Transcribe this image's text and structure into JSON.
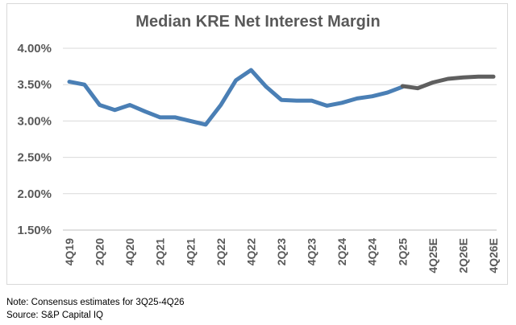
{
  "notes": {
    "note": "Note: Consensus estimates for 3Q25-4Q26",
    "source": "Source: S&P Capital IQ"
  },
  "chart_data": {
    "type": "line",
    "title": "Median KRE Net Interest Margin",
    "xlabel": "",
    "ylabel": "",
    "ylim": [
      1.5,
      4.0
    ],
    "yticks": [
      "1.50%",
      "2.00%",
      "2.50%",
      "3.00%",
      "3.50%",
      "4.00%"
    ],
    "ytick_values": [
      1.5,
      2.0,
      2.5,
      3.0,
      3.5,
      4.0
    ],
    "grid": "horizontal",
    "categories": [
      "4Q19",
      "1Q20",
      "2Q20",
      "3Q20",
      "4Q20",
      "1Q21",
      "2Q21",
      "3Q21",
      "4Q21",
      "1Q22",
      "2Q22",
      "3Q22",
      "4Q22",
      "1Q23",
      "2Q23",
      "3Q23",
      "4Q23",
      "1Q24",
      "2Q24",
      "3Q24",
      "4Q24",
      "1Q25",
      "2Q25",
      "3Q25E",
      "4Q25E",
      "1Q26E",
      "2Q26E",
      "3Q26E",
      "4Q26E"
    ],
    "xtick_labels": [
      "4Q19",
      "2Q20",
      "4Q20",
      "2Q21",
      "4Q21",
      "2Q22",
      "4Q22",
      "2Q23",
      "4Q23",
      "2Q24",
      "4Q24",
      "2Q25",
      "4Q25E",
      "2Q26E",
      "4Q26E"
    ],
    "series": [
      {
        "name": "",
        "color": "#4a7fb5",
        "values": [
          3.54,
          3.5,
          3.22,
          3.15,
          3.22,
          3.13,
          3.05,
          3.05,
          3.0,
          2.95,
          3.22,
          3.56,
          3.7,
          3.47,
          3.29,
          3.28,
          3.28,
          3.21,
          3.25,
          3.31,
          3.34,
          3.39,
          3.47,
          null,
          null,
          null,
          null,
          null,
          null
        ]
      },
      {
        "name": "",
        "color": "#5f5f5f",
        "values": [
          null,
          null,
          null,
          null,
          null,
          null,
          null,
          null,
          null,
          null,
          null,
          null,
          null,
          null,
          null,
          null,
          null,
          null,
          null,
          null,
          null,
          null,
          3.48,
          3.45,
          3.53,
          3.58,
          3.6,
          3.61,
          3.61
        ]
      }
    ]
  }
}
